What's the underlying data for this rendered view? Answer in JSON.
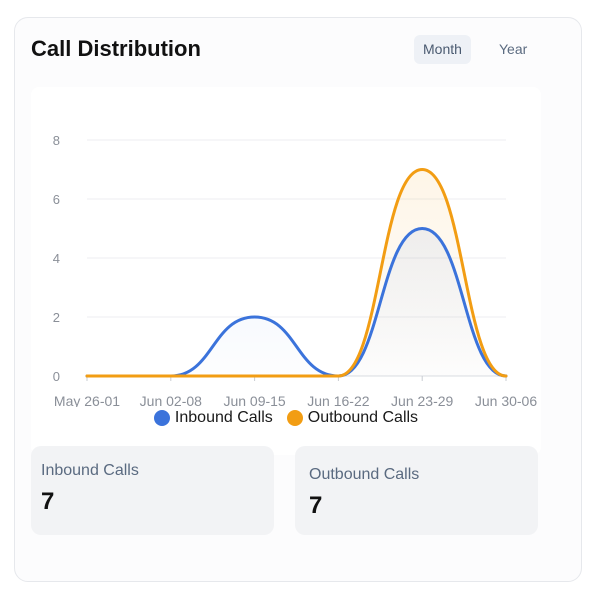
{
  "header": {
    "title": "Call Distribution",
    "toggle": {
      "month": "Month",
      "year": "Year",
      "active": "Month"
    }
  },
  "colors": {
    "inbound": "#3b73db",
    "outbound": "#f29d13"
  },
  "chart_data": {
    "type": "area",
    "categories": [
      "May 26-01",
      "Jun 02-08",
      "Jun 09-15",
      "Jun 16-22",
      "Jun 23-29",
      "Jun 30-06"
    ],
    "series": [
      {
        "name": "Inbound Calls",
        "values": [
          0,
          0,
          2,
          0,
          5,
          0
        ]
      },
      {
        "name": "Outbound Calls",
        "values": [
          0,
          0,
          0,
          0,
          7,
          0
        ]
      }
    ],
    "yticks": [
      0,
      2,
      4,
      6,
      8
    ],
    "ylim": [
      0,
      8
    ],
    "grid": true,
    "legend": "bottom"
  },
  "stats": {
    "inbound": {
      "label": "Inbound Calls",
      "value": "7"
    },
    "outbound": {
      "label": "Outbound Calls",
      "value": "7"
    }
  }
}
